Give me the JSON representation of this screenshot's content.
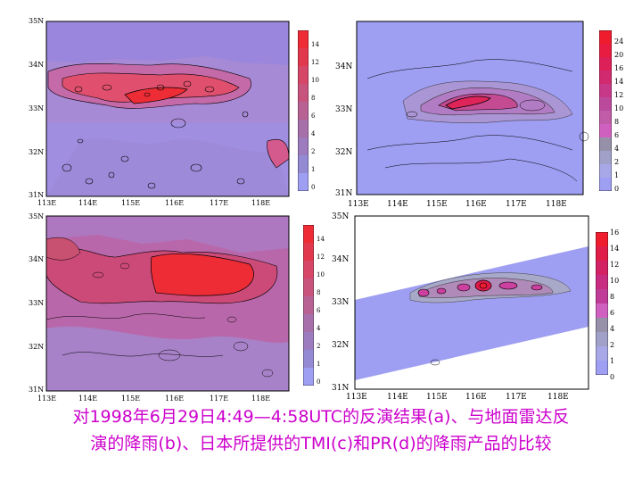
{
  "panels": {
    "a": {
      "lat_labels": [
        "35N",
        "34N",
        "33N",
        "32N",
        "31N"
      ],
      "lon_labels": [
        "113E",
        "114E",
        "115E",
        "116E",
        "117E",
        "118E"
      ],
      "colorbar_ticks": [
        "14",
        "12",
        "10",
        "8",
        "6",
        "4",
        "2",
        "1",
        "0"
      ]
    },
    "b": {
      "lat_labels": [
        "34N",
        "33N",
        "32N",
        "31N"
      ],
      "lon_labels": [
        "113E",
        "114E",
        "115E",
        "116E",
        "117E",
        "118E"
      ],
      "colorbar_ticks": [
        "24",
        "20",
        "16",
        "14",
        "12",
        "10",
        "8",
        "6",
        "4",
        "2",
        "1",
        "0"
      ]
    },
    "c": {
      "lat_labels": [
        "35N",
        "34N",
        "33N",
        "32N",
        "31N"
      ],
      "lon_labels": [
        "113E",
        "114E",
        "115E",
        "116E",
        "117E",
        "118E"
      ],
      "colorbar_ticks": [
        "14",
        "12",
        "10",
        "8",
        "6",
        "4",
        "2",
        "1",
        "0"
      ]
    },
    "d": {
      "lat_labels": [
        "35N",
        "34N",
        "33N",
        "32N",
        "31N"
      ],
      "lon_labels": [
        "113E",
        "114E",
        "115E",
        "116E",
        "117E",
        "118E"
      ],
      "colorbar_ticks": [
        "16",
        "14",
        "12",
        "10",
        "8",
        "6",
        "4",
        "2",
        "1",
        "0"
      ]
    }
  },
  "colors": {
    "low": "#9e9ef2",
    "mid": "#b060b8",
    "high": "#ee2c36",
    "caption": "#cc00cc"
  },
  "caption": {
    "line1": "对1998年6月29日4:49—4:58UTC的反演结果(a)、与地面雷达反",
    "line2": "演的降雨(b)、日本所提供的TMI(c)和PR(d)的降雨产品的比较"
  }
}
